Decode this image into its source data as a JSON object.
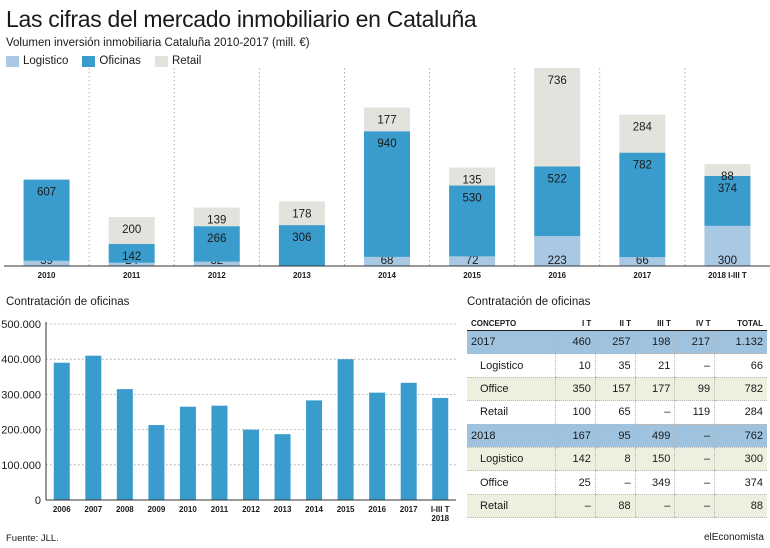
{
  "title": "Las cifras del mercado inmobiliario en Cataluña",
  "subtitle": "Volumen inversión inmobiliaria Cataluña 2010-2017 (mill. €)",
  "colors": {
    "logistico": "#a9c8e3",
    "oficinas": "#3a9ccc",
    "retail": "#e4e2dc",
    "header_row": "#9fc3df",
    "alt_row": "#efefe0"
  },
  "bottom_left_title": "Contratación de oficinas",
  "table_title": "Contratación de oficinas",
  "source": "Fuente: JLL.",
  "brand": "elEconomista",
  "chart_data": [
    {
      "type": "bar",
      "stacked": true,
      "categories": [
        "2010",
        "2011",
        "2012",
        "2013",
        "2014",
        "2015",
        "2016",
        "2017",
        "2018 I-III T"
      ],
      "series": [
        {
          "name": "Logistico",
          "values": [
            39,
            24,
            32,
            0,
            68,
            72,
            223,
            66,
            300
          ],
          "labels": [
            "39",
            "24",
            "32",
            "",
            "68",
            "72",
            "223",
            "66",
            "300"
          ]
        },
        {
          "name": "Oficinas",
          "values": [
            607,
            142,
            266,
            306,
            940,
            530,
            522,
            782,
            374
          ],
          "labels": [
            "607",
            "142",
            "266",
            "306",
            "940",
            "530",
            "522",
            "782",
            "374"
          ]
        },
        {
          "name": "Retail",
          "values": [
            0,
            200,
            139,
            178,
            177,
            135,
            736,
            284,
            88
          ],
          "labels": [
            "",
            "200",
            "139",
            "178",
            "177",
            "135",
            "736",
            "284",
            "88"
          ]
        }
      ],
      "ylim": [
        0,
        1481
      ],
      "grid": false,
      "legend": "top-left"
    },
    {
      "type": "bar",
      "categories": [
        "2006",
        "2007",
        "2008",
        "2009",
        "2010",
        "2011",
        "2012",
        "2013",
        "2014",
        "2015",
        "2016",
        "2017",
        "I-III T 2018"
      ],
      "values": [
        390000,
        410000,
        315000,
        213000,
        265000,
        268000,
        200000,
        187000,
        283000,
        400000,
        305000,
        333000,
        290000
      ],
      "yticks": [
        "0",
        "100.000",
        "200.000",
        "300.000",
        "400.000",
        "500.000"
      ],
      "ylim": [
        0,
        500000
      ],
      "grid": true
    },
    {
      "type": "table",
      "columns": [
        "CONCEPTO",
        "I T",
        "II T",
        "III T",
        "IV T",
        "TOTAL"
      ],
      "rows": [
        {
          "kind": "group",
          "cells": [
            "2017",
            "460",
            "257",
            "198",
            "217",
            "1.132"
          ]
        },
        {
          "kind": "plain",
          "cells": [
            "Logistico",
            "10",
            "35",
            "21",
            "–",
            "66"
          ]
        },
        {
          "kind": "alt",
          "cells": [
            "Office",
            "350",
            "157",
            "177",
            "99",
            "782"
          ]
        },
        {
          "kind": "plain",
          "cells": [
            "Retail",
            "100",
            "65",
            "–",
            "119",
            "284"
          ]
        },
        {
          "kind": "group",
          "cells": [
            "2018",
            "167",
            "95",
            "499",
            "–",
            "762"
          ]
        },
        {
          "kind": "alt",
          "cells": [
            "Logistico",
            "142",
            "8",
            "150",
            "–",
            "300"
          ]
        },
        {
          "kind": "plain",
          "cells": [
            "Office",
            "25",
            "–",
            "349",
            "–",
            "374"
          ]
        },
        {
          "kind": "alt",
          "cells": [
            "Retail",
            "–",
            "88",
            "–",
            "–",
            "88"
          ]
        }
      ]
    }
  ]
}
